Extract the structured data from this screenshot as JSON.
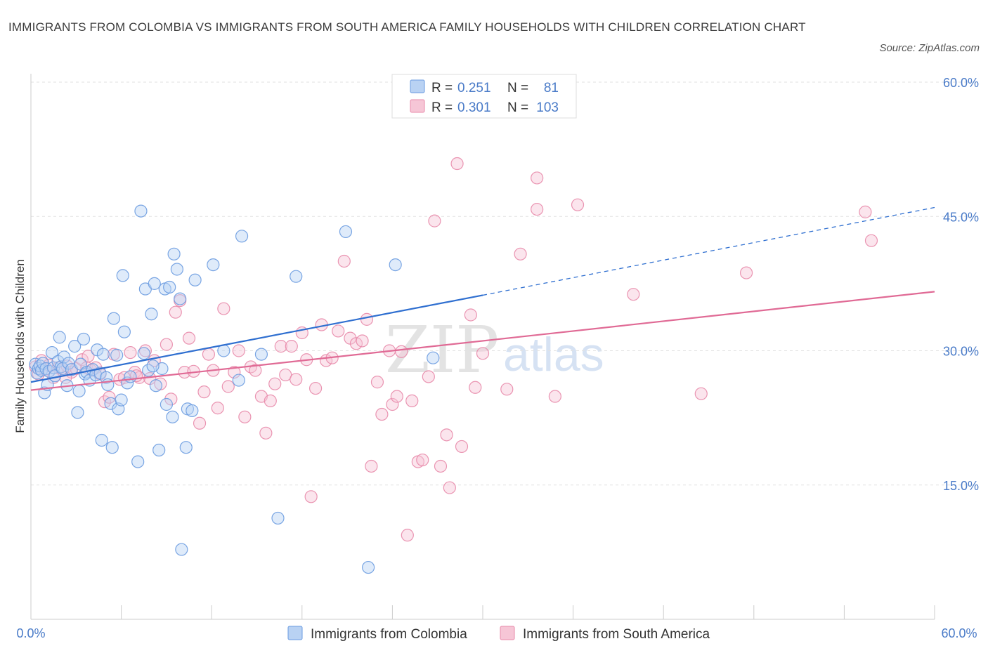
{
  "title": "IMMIGRANTS FROM COLOMBIA VS IMMIGRANTS FROM SOUTH AMERICA FAMILY HOUSEHOLDS WITH CHILDREN CORRELATION CHART",
  "source": "Source: ZipAtlas.com",
  "watermark": {
    "zip": "ZIP",
    "atlas": "atlas"
  },
  "legend": {
    "r_label": "R =",
    "n_label": "N =",
    "series1": {
      "r": "0.251",
      "n": "81"
    },
    "series2": {
      "r": "0.301",
      "n": "103"
    }
  },
  "colors": {
    "series1": "#6a9be0",
    "series1_fill": "#b9d2f3",
    "series1_line": "#2f6fd0",
    "series2": "#e88aaa",
    "series2_fill": "#f6c6d6",
    "series2_line": "#e06a95",
    "tick": "#4a7bc8"
  },
  "chart_data": {
    "type": "scatter",
    "title": "IMMIGRANTS FROM COLOMBIA VS IMMIGRANTS FROM SOUTH AMERICA FAMILY HOUSEHOLDS WITH CHILDREN CORRELATION CHART",
    "xlabel": "",
    "ylabel": "Family Households with Children",
    "xlim": [
      0,
      60
    ],
    "ylim": [
      0,
      60
    ],
    "x_tick_labels": [
      "0.0%",
      "60.0%"
    ],
    "y_ticks": [
      15,
      30,
      45,
      60
    ],
    "y_tick_labels": [
      "15.0%",
      "30.0%",
      "45.0%",
      "60.0%"
    ],
    "grid": true,
    "legend_position": "top-center",
    "series": [
      {
        "name": "Immigrants from Colombia",
        "r": 0.251,
        "n": 81,
        "trend": {
          "x0": 0,
          "y0": 26.5,
          "x1": 30,
          "y1": 36.2,
          "dashed_to_x": 60,
          "dashed_to_y": 46
        },
        "points": [
          [
            0.3,
            28.5
          ],
          [
            0.4,
            27.5
          ],
          [
            0.5,
            28
          ],
          [
            0.6,
            28.3
          ],
          [
            0.7,
            27.8
          ],
          [
            0.8,
            28.6
          ],
          [
            0.9,
            25.3
          ],
          [
            1.0,
            28
          ],
          [
            1.1,
            26.2
          ],
          [
            1.2,
            27.7
          ],
          [
            1.4,
            29.8
          ],
          [
            1.5,
            28.1
          ],
          [
            1.6,
            27.2
          ],
          [
            1.8,
            28.8
          ],
          [
            1.9,
            31.5
          ],
          [
            2.0,
            28.2
          ],
          [
            2.1,
            28.0
          ],
          [
            2.2,
            29.3
          ],
          [
            2.4,
            26.1
          ],
          [
            2.5,
            28.6
          ],
          [
            2.7,
            27.9
          ],
          [
            2.9,
            30.5
          ],
          [
            3.1,
            23.1
          ],
          [
            3.2,
            25.5
          ],
          [
            3.3,
            28.5
          ],
          [
            3.5,
            31.3
          ],
          [
            3.6,
            27.4
          ],
          [
            3.7,
            27.6
          ],
          [
            3.9,
            26.7
          ],
          [
            4.1,
            27.9
          ],
          [
            4.3,
            27.3
          ],
          [
            4.4,
            30.1
          ],
          [
            4.6,
            27.5
          ],
          [
            4.7,
            20.0
          ],
          [
            4.8,
            29.6
          ],
          [
            5.0,
            27.0
          ],
          [
            5.1,
            26.2
          ],
          [
            5.3,
            24.1
          ],
          [
            5.4,
            19.2
          ],
          [
            5.5,
            33.6
          ],
          [
            5.7,
            29.5
          ],
          [
            5.8,
            23.5
          ],
          [
            6.0,
            24.5
          ],
          [
            6.1,
            38.4
          ],
          [
            6.2,
            32.1
          ],
          [
            6.4,
            26.4
          ],
          [
            6.6,
            27.1
          ],
          [
            7.1,
            17.6
          ],
          [
            7.3,
            45.6
          ],
          [
            7.5,
            29.7
          ],
          [
            7.6,
            36.9
          ],
          [
            7.8,
            27.8
          ],
          [
            8.0,
            34.1
          ],
          [
            8.2,
            37.5
          ],
          [
            8.3,
            26.1
          ],
          [
            8.5,
            18.9
          ],
          [
            8.7,
            28.0
          ],
          [
            8.9,
            36.9
          ],
          [
            9.0,
            24.0
          ],
          [
            9.2,
            37.1
          ],
          [
            9.4,
            22.6
          ],
          [
            9.5,
            40.8
          ],
          [
            9.7,
            39.1
          ],
          [
            9.9,
            35.8
          ],
          [
            10.0,
            7.8
          ],
          [
            10.3,
            19.2
          ],
          [
            10.4,
            23.5
          ],
          [
            10.7,
            23.3
          ],
          [
            10.9,
            37.9
          ],
          [
            12.1,
            39.6
          ],
          [
            12.8,
            30.0
          ],
          [
            13.8,
            26.7
          ],
          [
            14.0,
            42.8
          ],
          [
            15.3,
            29.6
          ],
          [
            16.4,
            11.3
          ],
          [
            17.6,
            38.3
          ],
          [
            20.9,
            43.3
          ],
          [
            22.4,
            5.8
          ],
          [
            24.2,
            39.6
          ],
          [
            26.7,
            29.2
          ],
          [
            8.1,
            28.3
          ]
        ]
      },
      {
        "name": "Immigrants from South America",
        "r": 0.301,
        "n": 103,
        "trend": {
          "x0": 0,
          "y0": 25.6,
          "x1": 60,
          "y1": 36.6
        },
        "points": [
          [
            0.3,
            28.2
          ],
          [
            0.5,
            27.4
          ],
          [
            0.7,
            28.9
          ],
          [
            0.9,
            27.9
          ],
          [
            1.2,
            28.4
          ],
          [
            1.5,
            27.0
          ],
          [
            1.8,
            28.1
          ],
          [
            2.1,
            27.8
          ],
          [
            2.4,
            28.3
          ],
          [
            2.7,
            27.6
          ],
          [
            3.0,
            28.0
          ],
          [
            3.4,
            29.0
          ],
          [
            3.7,
            28.1
          ],
          [
            4.0,
            27.8
          ],
          [
            4.3,
            28.1
          ],
          [
            4.6,
            27.4
          ],
          [
            4.9,
            24.3
          ],
          [
            5.2,
            24.8
          ],
          [
            5.5,
            29.6
          ],
          [
            5.9,
            26.8
          ],
          [
            6.2,
            27.0
          ],
          [
            6.6,
            29.8
          ],
          [
            6.9,
            27.6
          ],
          [
            7.2,
            27.0
          ],
          [
            7.6,
            30.0
          ],
          [
            7.9,
            26.9
          ],
          [
            8.2,
            28.9
          ],
          [
            8.6,
            26.3
          ],
          [
            9.0,
            30.7
          ],
          [
            9.3,
            24.6
          ],
          [
            9.6,
            34.3
          ],
          [
            9.9,
            35.6
          ],
          [
            10.2,
            27.6
          ],
          [
            10.5,
            31.4
          ],
          [
            10.8,
            27.7
          ],
          [
            11.2,
            21.9
          ],
          [
            11.5,
            25.4
          ],
          [
            11.8,
            29.6
          ],
          [
            12.1,
            27.8
          ],
          [
            12.4,
            23.6
          ],
          [
            12.8,
            34.7
          ],
          [
            13.1,
            26.0
          ],
          [
            13.5,
            27.6
          ],
          [
            13.8,
            30.0
          ],
          [
            14.2,
            22.6
          ],
          [
            14.6,
            28.2
          ],
          [
            14.9,
            27.8
          ],
          [
            15.3,
            24.9
          ],
          [
            15.6,
            20.8
          ],
          [
            15.9,
            24.4
          ],
          [
            16.2,
            26.3
          ],
          [
            16.6,
            30.5
          ],
          [
            16.9,
            27.3
          ],
          [
            17.3,
            30.5
          ],
          [
            17.6,
            26.8
          ],
          [
            18.0,
            32.0
          ],
          [
            18.3,
            29.0
          ],
          [
            18.6,
            13.7
          ],
          [
            18.9,
            25.8
          ],
          [
            19.3,
            32.9
          ],
          [
            19.6,
            28.9
          ],
          [
            20.0,
            29.2
          ],
          [
            20.4,
            32.2
          ],
          [
            20.8,
            40.0
          ],
          [
            21.2,
            31.4
          ],
          [
            21.6,
            30.8
          ],
          [
            22.0,
            31.1
          ],
          [
            22.3,
            33.5
          ],
          [
            22.6,
            17.1
          ],
          [
            23.0,
            26.5
          ],
          [
            23.3,
            22.9
          ],
          [
            23.8,
            30.0
          ],
          [
            24.0,
            24.0
          ],
          [
            24.3,
            24.9
          ],
          [
            24.6,
            29.9
          ],
          [
            25.0,
            9.4
          ],
          [
            25.3,
            24.4
          ],
          [
            25.7,
            17.6
          ],
          [
            26.0,
            17.8
          ],
          [
            26.4,
            27.1
          ],
          [
            26.8,
            44.5
          ],
          [
            27.2,
            17.1
          ],
          [
            27.6,
            20.6
          ],
          [
            27.8,
            14.7
          ],
          [
            28.3,
            50.9
          ],
          [
            28.6,
            19.3
          ],
          [
            29.2,
            34.0
          ],
          [
            29.5,
            25.9
          ],
          [
            30.0,
            29.7
          ],
          [
            31.6,
            25.7
          ],
          [
            32.5,
            40.8
          ],
          [
            33.6,
            49.3
          ],
          [
            33.6,
            45.8
          ],
          [
            34.8,
            24.9
          ],
          [
            36.3,
            46.3
          ],
          [
            40.0,
            36.3
          ],
          [
            44.5,
            25.2
          ],
          [
            47.5,
            38.7
          ],
          [
            55.4,
            45.5
          ],
          [
            55.8,
            42.3
          ],
          [
            7.0,
            27.2
          ],
          [
            2.3,
            27.0
          ],
          [
            3.8,
            29.4
          ]
        ]
      }
    ]
  },
  "bottom_legend": {
    "series1_label": "Immigrants from Colombia",
    "series2_label": "Immigrants from South America"
  }
}
